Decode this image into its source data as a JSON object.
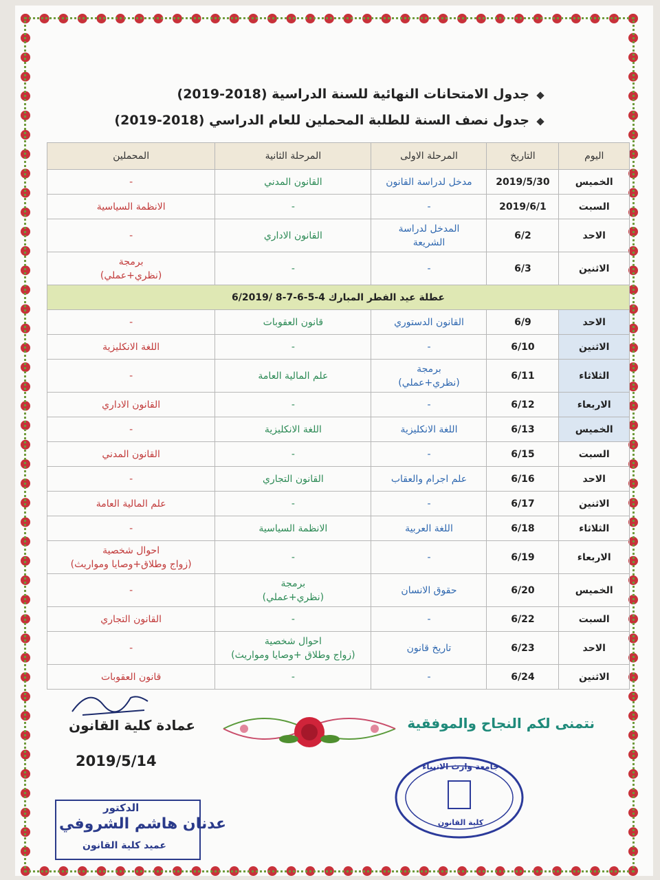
{
  "header": {
    "title_1": "جدول الامتحانات النهائية للسنة الدراسية (2018-2019)",
    "title_2": "جدول نصف السنة للطلبة المحملين للعام الدراسي (2018-2019)"
  },
  "table": {
    "columns": [
      "اليوم",
      "التاريخ",
      "المرحلة الاولى",
      "المرحلة الثانية",
      "المحملين"
    ],
    "rows": [
      {
        "cells": [
          "الخميس",
          "2019/5/30",
          "مدخل لدراسة القانون",
          "القانون المدني",
          "-"
        ]
      },
      {
        "cells": [
          "السبت",
          "2019/6/1",
          "-",
          "-",
          "الانظمة السياسية"
        ]
      },
      {
        "cells": [
          "الاحد",
          "6/2",
          "المدخل لدراسة\nالشريعة",
          "القانون الاداري",
          "-"
        ]
      },
      {
        "cells": [
          "الاثنين",
          "6/3",
          "-",
          "-",
          "برمجة\n(نظري+عملي)"
        ]
      },
      {
        "note": "عطلة عيد الفطر المبارك 4-5-6-7-8 /6/2019"
      },
      {
        "cells": [
          "الاحد",
          "6/9",
          "القانون الدستوري",
          "قانون العقوبات",
          "-"
        ]
      },
      {
        "cells": [
          "الاثنين",
          "6/10",
          "-",
          "-",
          "اللغة الانكليزية"
        ]
      },
      {
        "cells": [
          "الثلاثاء",
          "6/11",
          "برمجة\n(نظري+عملي)",
          "علم المالية العامة",
          "-"
        ]
      },
      {
        "cells": [
          "الاربعاء",
          "6/12",
          "-",
          "-",
          "القانون الاداري"
        ]
      },
      {
        "cells": [
          "الخميس",
          "6/13",
          "اللغة الانكليزية",
          "اللغة الانكليزية",
          "-"
        ]
      },
      {
        "cells": [
          "السبت",
          "6/15",
          "-",
          "-",
          "القانون المدني"
        ]
      },
      {
        "cells": [
          "الاحد",
          "6/16",
          "علم اجرام والعقاب",
          "القانون التجاري",
          "-"
        ]
      },
      {
        "cells": [
          "الاثنين",
          "6/17",
          "-",
          "-",
          "علم المالية العامة"
        ]
      },
      {
        "cells": [
          "الثلاثاء",
          "6/18",
          "اللغة العربية",
          "الانظمة السياسية",
          "-"
        ]
      },
      {
        "cells": [
          "الاربعاء",
          "6/19",
          "-",
          "-",
          "احوال شخصية\n(زواج وطلاق+وصايا ومواريث)"
        ]
      },
      {
        "cells": [
          "الخميس",
          "6/20",
          "حقوق الانسان",
          "برمجة\n(نظري+عملي)",
          "-"
        ]
      },
      {
        "cells": [
          "السبت",
          "6/22",
          "-",
          "-",
          "القانون التجاري"
        ]
      },
      {
        "cells": [
          "الاحد",
          "6/23",
          "تاريخ قانون",
          "احوال شخصية\n(زواج وطلاق +وصايا ومواريث)",
          "-"
        ]
      },
      {
        "cells": [
          "الاثنين",
          "6/24",
          "-",
          "-",
          "قانون العقوبات"
        ]
      }
    ]
  },
  "footer": {
    "wish": "نتمنى لكم النجاح والموفقية",
    "deanship": "عمادة كلية القانون",
    "date": "2019/5/14",
    "stamp": {
      "university": "جامعة وارث الانبياء",
      "college": "كلية القانون"
    },
    "signature": {
      "title": "الدكتور",
      "name": "عدنان هاشم الشروفي",
      "position": "عميد كلية القانون"
    }
  }
}
